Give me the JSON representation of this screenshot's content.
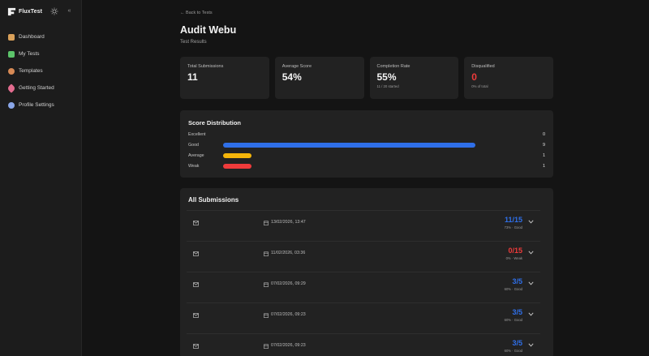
{
  "app": {
    "name": "FluxTest"
  },
  "sidebar": {
    "items": [
      {
        "label": "Dashboard",
        "icon": "home-icon",
        "color": "#d9a15a"
      },
      {
        "label": "My Tests",
        "icon": "pencil-icon",
        "color": "#5cc46a"
      },
      {
        "label": "Templates",
        "icon": "palette-icon",
        "color": "#d78a55"
      },
      {
        "label": "Getting Started",
        "icon": "rocket-icon",
        "color": "#e36c8f"
      },
      {
        "label": "Profile Settings",
        "icon": "gear-icon",
        "color": "#8aa6e8"
      }
    ]
  },
  "header": {
    "back_label": "← Back to Tests",
    "title": "Audit Webu",
    "subtitle": "Test Results"
  },
  "stats": [
    {
      "label": "Total Submissions",
      "value": "11",
      "sub": ""
    },
    {
      "label": "Average Score",
      "value": "54%",
      "sub": ""
    },
    {
      "label": "Completion Rate",
      "value": "55%",
      "sub": "11 / 20 started"
    },
    {
      "label": "Disqualified",
      "value": "0",
      "sub": "0% of total"
    }
  ],
  "distribution": {
    "title": "Score Distribution",
    "rows": [
      {
        "label": "Excellent",
        "count": "0",
        "fraction": 0,
        "color": "#2f6fe8"
      },
      {
        "label": "Good",
        "count": "9",
        "fraction": 0.818,
        "color": "#2f6fe8"
      },
      {
        "label": "Average",
        "count": "1",
        "fraction": 0.091,
        "color": "#f5b50a"
      },
      {
        "label": "Weak",
        "count": "1",
        "fraction": 0.091,
        "color": "#ef3b3b"
      }
    ]
  },
  "submissions": {
    "title": "All Submissions",
    "rows": [
      {
        "date": "13/02/2026, 13:47",
        "score": "11/15",
        "detail": "73% · Good",
        "tone": "blue"
      },
      {
        "date": "11/02/2026, 03:36",
        "score": "0/15",
        "detail": "0% · Weak",
        "tone": "red"
      },
      {
        "date": "07/02/2026, 09:29",
        "score": "3/5",
        "detail": "60% · Good",
        "tone": "blue"
      },
      {
        "date": "07/02/2026, 09:23",
        "score": "3/5",
        "detail": "60% · Good",
        "tone": "blue"
      },
      {
        "date": "07/02/2026, 09:23",
        "score": "3/5",
        "detail": "60% · Good",
        "tone": "blue"
      }
    ]
  }
}
